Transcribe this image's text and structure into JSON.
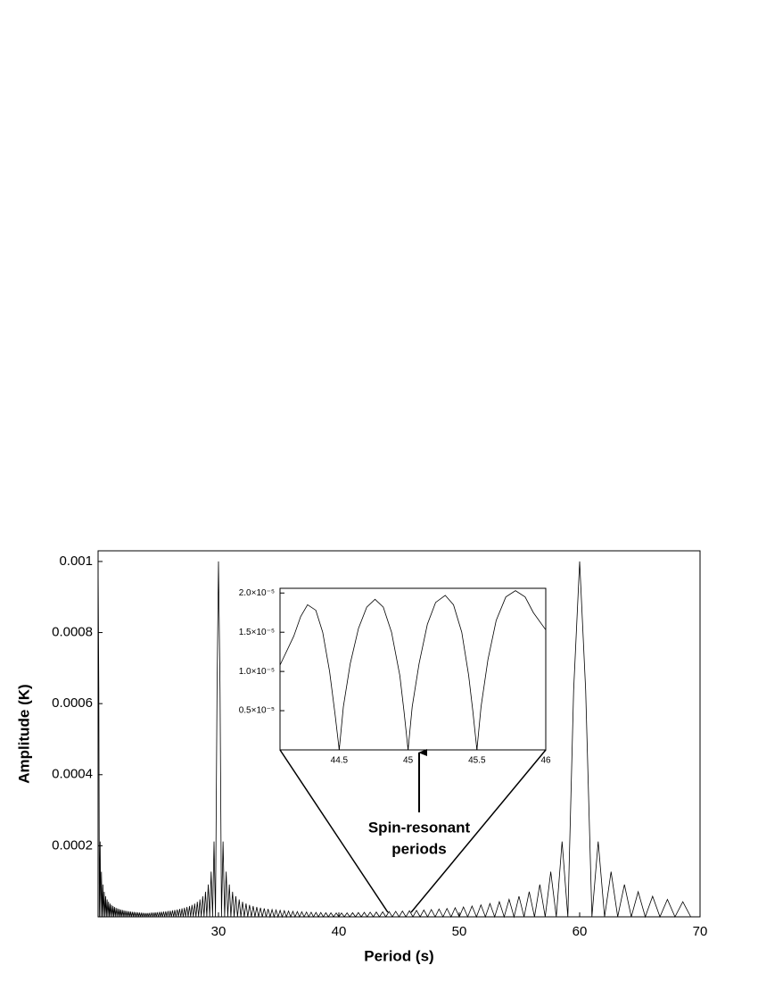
{
  "chart_data": [
    {
      "type": "line",
      "xlabel": "Period (s)",
      "ylabel": "Amplitude (K)",
      "annotation": [
        "Spin-resonant",
        "periods"
      ],
      "xlim": [
        20,
        70
      ],
      "xticks": [
        30,
        40,
        50,
        60,
        70
      ],
      "ylim": [
        0,
        0.00103
      ],
      "yticks": [
        0.0002,
        0.0004,
        0.0006,
        0.0008,
        0.001
      ],
      "color": "#000000",
      "x": [
        20.0,
        20.06,
        20.11,
        20.17,
        20.22,
        20.28,
        20.34,
        20.4,
        20.45,
        20.51,
        20.57,
        20.63,
        20.69,
        20.75,
        20.81,
        20.87,
        20.93,
        20.99,
        21.05,
        21.11,
        21.18,
        21.24,
        21.3,
        21.36,
        21.43,
        21.49,
        21.56,
        21.62,
        21.69,
        21.75,
        21.82,
        21.88,
        21.95,
        22.02,
        22.09,
        22.15,
        22.22,
        22.29,
        22.36,
        22.43,
        22.5,
        22.57,
        22.64,
        22.71,
        22.78,
        22.86,
        22.93,
        23.0,
        23.08,
        23.15,
        23.23,
        23.3,
        23.38,
        23.45,
        23.53,
        23.61,
        23.68,
        23.76,
        23.84,
        23.92,
        24.0,
        24.08,
        24.16,
        24.24,
        24.32,
        24.41,
        24.49,
        24.57,
        24.66,
        24.74,
        24.83,
        24.91,
        25.0,
        25.09,
        25.17,
        25.26,
        25.35,
        25.44,
        25.53,
        25.62,
        25.71,
        25.81,
        25.9,
        25.99,
        26.09,
        26.18,
        26.28,
        26.37,
        26.47,
        26.57,
        26.67,
        26.77,
        26.87,
        26.97,
        27.07,
        27.17,
        27.27,
        27.38,
        27.48,
        27.59,
        27.69,
        27.8,
        27.91,
        28.02,
        28.13,
        28.24,
        28.35,
        28.46,
        28.57,
        28.69,
        28.8,
        28.92,
        29.03,
        29.15,
        29.27,
        29.39,
        29.51,
        29.63,
        29.75,
        29.88,
        30.0,
        30.13,
        30.25,
        30.38,
        30.51,
        30.64,
        30.77,
        30.9,
        31.03,
        31.17,
        31.3,
        31.44,
        31.58,
        31.72,
        31.86,
        32.0,
        32.14,
        32.29,
        32.43,
        32.58,
        32.73,
        32.88,
        33.03,
        33.18,
        33.33,
        33.49,
        33.64,
        33.8,
        33.96,
        34.12,
        34.29,
        34.45,
        34.62,
        34.78,
        34.95,
        35.12,
        35.29,
        35.47,
        35.64,
        35.82,
        36.0,
        36.18,
        36.36,
        36.55,
        36.73,
        36.92,
        37.11,
        37.31,
        37.5,
        37.7,
        37.89,
        38.1,
        38.3,
        38.5,
        38.71,
        38.92,
        39.13,
        39.34,
        39.56,
        39.78,
        40.0,
        40.22,
        40.45,
        40.68,
        40.91,
        41.14,
        41.38,
        41.62,
        41.86,
        42.11,
        42.35,
        42.6,
        42.86,
        43.11,
        43.37,
        43.64,
        43.9,
        44.17,
        44.44,
        44.72,
        45.0,
        45.28,
        45.57,
        45.86,
        46.15,
        46.45,
        46.75,
        47.06,
        47.37,
        47.68,
        48.0,
        48.32,
        48.65,
        48.98,
        49.32,
        49.66,
        50.0,
        50.35,
        50.7,
        51.06,
        51.43,
        51.8,
        52.17,
        52.55,
        52.94,
        53.33,
        53.73,
        54.14,
        54.55,
        54.96,
        55.38,
        55.81,
        56.25,
        56.69,
        57.14,
        57.6,
        58.06,
        58.54,
        59.02,
        59.5,
        60.0,
        60.5,
        61.02,
        61.54,
        62.07,
        62.61,
        63.16,
        63.72,
        64.29,
        64.86,
        65.45,
        66.06,
        66.67,
        67.29,
        67.92,
        68.57,
        69.23
      ],
      "values": [
        0.001,
        0.000637,
        0,
        0.000212,
        0,
        0.000127,
        0,
        9.09e-05,
        0,
        7.07e-05,
        0,
        5.79e-05,
        0,
        4.9e-05,
        0,
        4.24e-05,
        0,
        3.74e-05,
        0,
        3.35e-05,
        0,
        3.03e-05,
        0,
        2.77e-05,
        0,
        2.55e-05,
        0,
        2.36e-05,
        0,
        2.2e-05,
        0,
        2.05e-05,
        0,
        1.93e-05,
        0,
        1.82e-05,
        0,
        1.72e-05,
        0,
        1.63e-05,
        0,
        1.55e-05,
        0,
        1.48e-05,
        0,
        1.41e-05,
        0,
        1.35e-05,
        0,
        1.3e-05,
        0,
        1.25e-05,
        0,
        1.2e-05,
        0,
        1.16e-05,
        0,
        1.12e-05,
        0,
        1.08e-05,
        0,
        1.08e-05,
        0,
        1.12e-05,
        0,
        1.16e-05,
        0,
        1.2e-05,
        0,
        1.25e-05,
        0,
        1.3e-05,
        0,
        1.35e-05,
        0,
        1.41e-05,
        0,
        1.48e-05,
        0,
        1.55e-05,
        0,
        1.63e-05,
        0,
        1.72e-05,
        0,
        1.82e-05,
        0,
        1.93e-05,
        0,
        2.05e-05,
        0,
        2.2e-05,
        0,
        2.36e-05,
        0,
        2.55e-05,
        0,
        2.77e-05,
        0,
        3.03e-05,
        0,
        3.35e-05,
        0,
        3.74e-05,
        0,
        4.24e-05,
        0,
        4.9e-05,
        0,
        5.79e-05,
        0,
        7.07e-05,
        0,
        9.09e-05,
        0,
        0.000127,
        0,
        0.000212,
        0,
        0.000637,
        0.001,
        0.000637,
        0,
        0.000212,
        0,
        0.000127,
        0,
        9.09e-05,
        0,
        7.07e-05,
        0,
        5.79e-05,
        0,
        4.9e-05,
        0,
        4.24e-05,
        0,
        3.74e-05,
        0,
        3.35e-05,
        0,
        3.03e-05,
        0,
        2.77e-05,
        0,
        2.55e-05,
        0,
        2.36e-05,
        0,
        2.2e-05,
        0,
        2.05e-05,
        0,
        1.93e-05,
        0,
        1.82e-05,
        0,
        1.72e-05,
        0,
        1.63e-05,
        0,
        1.55e-05,
        0,
        1.48e-05,
        0,
        1.41e-05,
        0,
        1.35e-05,
        0,
        1.3e-05,
        0,
        1.25e-05,
        0,
        1.2e-05,
        0,
        1.16e-05,
        0,
        1.12e-05,
        0,
        1.08e-05,
        0,
        1.08e-05,
        0,
        1.12e-05,
        0,
        1.16e-05,
        0,
        1.2e-05,
        0,
        1.25e-05,
        0,
        1.3e-05,
        0,
        1.35e-05,
        0,
        1.41e-05,
        0,
        1.48e-05,
        0,
        1.55e-05,
        0,
        1.63e-05,
        0,
        1.72e-05,
        0,
        1.82e-05,
        0,
        1.93e-05,
        0,
        2.05e-05,
        0,
        2.2e-05,
        0,
        2.36e-05,
        0,
        2.55e-05,
        0,
        2.77e-05,
        0,
        3.03e-05,
        0,
        3.35e-05,
        0,
        3.74e-05,
        0,
        4.24e-05,
        0,
        4.9e-05,
        0,
        5.79e-05,
        0,
        7.07e-05,
        0,
        9.09e-05,
        0,
        0.000127,
        0,
        0.000212,
        0,
        0.000637,
        0.001,
        0.000637,
        0,
        0.000212,
        0,
        0.000127,
        0,
        9.09e-05,
        0,
        7.07e-05,
        0,
        5.79e-05,
        0,
        4.9e-05,
        0,
        4.24e-05,
        0
      ]
    },
    {
      "type": "line",
      "xlim": [
        44.07,
        46
      ],
      "xticks": [
        44.5,
        45,
        45.5,
        46
      ],
      "ylim": [
        0,
        2.06e-05
      ],
      "yticks": [
        {
          "value": 5e-06,
          "label": "0.5×10⁻⁵"
        },
        {
          "value": 1e-05,
          "label": "1.0×10⁻⁵"
        },
        {
          "value": 1.5e-05,
          "label": "1.5×10⁻⁵"
        },
        {
          "value": 2e-05,
          "label": "2.0×10⁻⁵"
        }
      ],
      "color": "#000000",
      "x": [
        44.07,
        44.17,
        44.22,
        44.27,
        44.33,
        44.38,
        44.43,
        44.47,
        44.5,
        44.53,
        44.58,
        44.64,
        44.7,
        44.76,
        44.82,
        44.88,
        44.94,
        44.97,
        45.0,
        45.03,
        45.08,
        45.14,
        45.2,
        45.27,
        45.33,
        45.39,
        45.44,
        45.47,
        45.5,
        45.53,
        45.58,
        45.64,
        45.71,
        45.78,
        45.85,
        45.91,
        46.0
      ],
      "values": [
        1.08e-05,
        1.45e-05,
        1.7e-05,
        1.85e-05,
        1.78e-05,
        1.5e-05,
        1e-05,
        4.5e-06,
        0,
        5.5e-06,
        1.1e-05,
        1.55e-05,
        1.82e-05,
        1.92e-05,
        1.82e-05,
        1.5e-05,
        9.5e-06,
        5e-06,
        0,
        5.5e-06,
        1.1e-05,
        1.6e-05,
        1.88e-05,
        1.97e-05,
        1.85e-05,
        1.5e-05,
        9.5e-06,
        5e-06,
        0,
        5.5e-06,
        1.15e-05,
        1.65e-05,
        1.95e-05,
        2.03e-05,
        1.95e-05,
        1.75e-05,
        1.53e-05
      ]
    }
  ]
}
